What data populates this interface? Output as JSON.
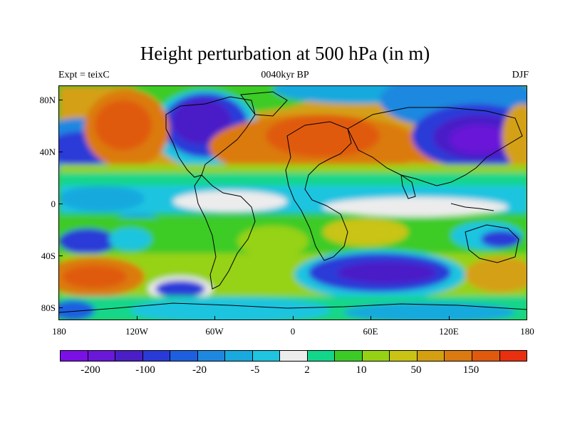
{
  "title": "Height perturbation at 500 hPa (in m)",
  "left_string": "Expt = teixC",
  "center_string": "0040kyr BP",
  "right_string": "DJF",
  "y_ticks": [
    "80N",
    "40N",
    "0",
    "40S",
    "80S"
  ],
  "x_ticks": [
    "180",
    "120W",
    "60W",
    "0",
    "60E",
    "120E",
    "180"
  ],
  "colorbar": {
    "colors": [
      "#7a10e6",
      "#6a18d8",
      "#4a1fc8",
      "#2a3ad8",
      "#1e5fe0",
      "#1e88e0",
      "#18a9de",
      "#1ec4e0",
      "#ececec",
      "#12d68a",
      "#3ccb26",
      "#96d214",
      "#c9c413",
      "#d4a012",
      "#db7a10",
      "#e05a0e",
      "#e8300e"
    ],
    "labels": [
      "-200",
      "-100",
      "-20",
      "-5",
      "2",
      "10",
      "50",
      "150"
    ]
  }
}
